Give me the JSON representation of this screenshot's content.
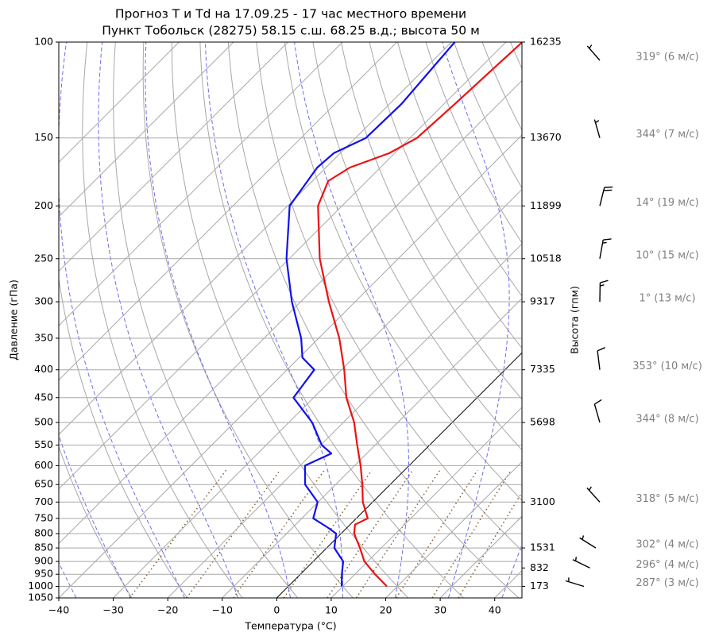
{
  "chart_data": {
    "type": "skewt",
    "title": "Прогноз T и Td на 17.09.25 - 17 час местного времени",
    "subtitle": "Пункт Тобольск (28275) 58.15 с.ш. 68.25 в.д.; высота 50 м",
    "xlabel": "Температура (°C)",
    "ylabel": "Давление (гПа)",
    "y2label": "Высота (гпм)",
    "xlim": [
      -40,
      45
    ],
    "ylim": [
      1050,
      100
    ],
    "log_y": true,
    "grid": true,
    "xticks": [
      {
        "value": -40,
        "label": "−40"
      },
      {
        "value": -30,
        "label": "−30"
      },
      {
        "value": -20,
        "label": "−20"
      },
      {
        "value": -10,
        "label": "−10"
      },
      0,
      10,
      20,
      30,
      40
    ],
    "yticks": [
      100,
      150,
      200,
      250,
      300,
      350,
      400,
      450,
      500,
      550,
      600,
      650,
      700,
      750,
      800,
      850,
      900,
      950,
      1000,
      1050
    ],
    "height_labels": [
      {
        "pressure": 100,
        "height": 16235
      },
      {
        "pressure": 150,
        "height": 13670
      },
      {
        "pressure": 200,
        "height": 11899
      },
      {
        "pressure": 250,
        "height": 10518
      },
      {
        "pressure": 300,
        "height": 9317
      },
      {
        "pressure": 400,
        "height": 7335
      },
      {
        "pressure": 500,
        "height": 5698
      },
      {
        "pressure": 700,
        "height": 3100
      },
      {
        "pressure": 850,
        "height": 1531
      },
      {
        "pressure": 925,
        "height": 832
      },
      {
        "pressure": 1000,
        "height": 173
      }
    ],
    "series": [
      {
        "color": "#ee1111",
        "pressure": [
          1000,
          950,
          900,
          850,
          800,
          770,
          750,
          700,
          650,
          600,
          550,
          500,
          450,
          400,
          350,
          300,
          250,
          200,
          180,
          170,
          160,
          150,
          130,
          100
        ],
        "values": [
          18.1,
          13.7,
          9.4,
          6.1,
          2.4,
          0.9,
          2.1,
          -1.8,
          -5.1,
          -8.9,
          -13.3,
          -18.0,
          -24.0,
          -29.5,
          -36.2,
          -44.8,
          -54.4,
          -64.4,
          -67.1,
          -65.6,
          -61.0,
          -58.7,
          -58.0,
          -57.0
        ]
      },
      {
        "color": "#1111ee",
        "pressure": [
          1000,
          950,
          900,
          850,
          800,
          780,
          750,
          700,
          650,
          600,
          570,
          550,
          500,
          450,
          400,
          380,
          350,
          300,
          250,
          200,
          170,
          160,
          150,
          130,
          100
        ],
        "values": [
          9.8,
          7.6,
          5.5,
          1.4,
          -0.9,
          -3.5,
          -7.9,
          -10.1,
          -15.6,
          -19.1,
          -16.5,
          -19.8,
          -25.7,
          -33.7,
          -35.0,
          -39.4,
          -43.2,
          -51.6,
          -60.5,
          -69.6,
          -71.6,
          -71.2,
          -68.1,
          -67.8,
          -69.4
        ]
      }
    ],
    "winds": [
      {
        "pressure": 100,
        "direction": 319,
        "speed": 6,
        "label": "319° (6 м/с)"
      },
      {
        "pressure": 150,
        "direction": 344,
        "speed": 7,
        "label": "344° (7 м/с)"
      },
      {
        "pressure": 200,
        "direction": 14,
        "speed": 19,
        "label": "14° (19 м/с)"
      },
      {
        "pressure": 250,
        "direction": 10,
        "speed": 15,
        "label": "10° (15 м/с)"
      },
      {
        "pressure": 300,
        "direction": 1,
        "speed": 13,
        "label": "1° (13 м/с)"
      },
      {
        "pressure": 400,
        "direction": 353,
        "speed": 10,
        "label": "353° (10 м/с)"
      },
      {
        "pressure": 500,
        "direction": 344,
        "speed": 8,
        "label": "344° (8 м/с)"
      },
      {
        "pressure": 700,
        "direction": 318,
        "speed": 5,
        "label": "318° (5 м/с)"
      },
      {
        "pressure": 850,
        "direction": 302,
        "speed": 4,
        "label": "302° (4 м/с)"
      },
      {
        "pressure": 925,
        "direction": 296,
        "speed": 4,
        "label": "296° (4 м/с)"
      },
      {
        "pressure": 1000,
        "direction": 287,
        "speed": 3,
        "label": "287° (3 м/с)"
      }
    ]
  }
}
